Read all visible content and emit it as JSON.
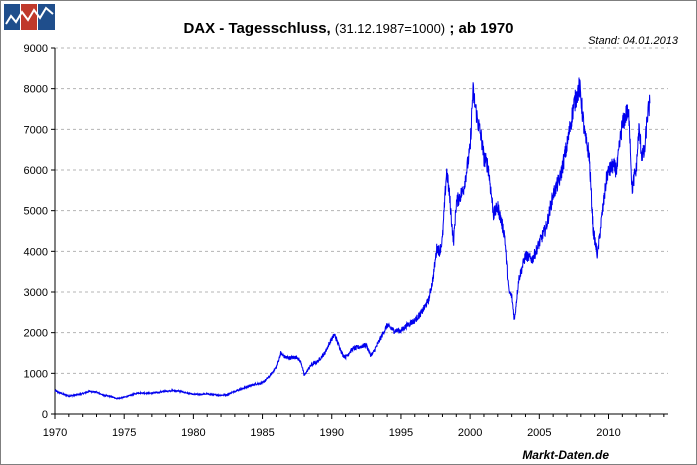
{
  "title": {
    "main": "DAX - Tagesschluss,",
    "base": "(31.12.1987=1000)",
    "suffix": "; ab 1970"
  },
  "stand": "Stand: 04.01.2013",
  "source": "Markt-Daten.de",
  "logo_colors": [
    "#1f4e8c",
    "#c0392b",
    "#1f4e8c"
  ],
  "chart_data": {
    "type": "line",
    "title": "DAX - Tagesschluss, (31.12.1987=1000) ; ab 1970",
    "xlabel": "",
    "ylabel": "",
    "xlim": [
      1970,
      2014.3
    ],
    "ylim": [
      0,
      9000
    ],
    "grid": true,
    "x_ticks": [
      1970,
      1975,
      1980,
      1985,
      1990,
      1995,
      2000,
      2005,
      2010
    ],
    "y_ticks": [
      0,
      1000,
      2000,
      3000,
      4000,
      5000,
      6000,
      7000,
      8000,
      9000
    ],
    "line_color": "#0000ee",
    "series": [
      {
        "x": [
          1970.0,
          1970.5,
          1971.0,
          1971.5,
          1972.0,
          1972.5,
          1973.0,
          1973.5,
          1974.0,
          1974.5,
          1975.0,
          1975.5,
          1976.0,
          1977.0,
          1978.0,
          1978.5,
          1979.0,
          1980.0,
          1981.0,
          1982.0,
          1982.5,
          1983.0,
          1983.5,
          1984.0,
          1984.5,
          1985.0,
          1985.5,
          1986.0,
          1986.3,
          1986.6,
          1987.0,
          1987.5,
          1987.8,
          1988.0,
          1988.5,
          1989.0,
          1989.5,
          1989.9,
          1990.2,
          1990.5,
          1990.8,
          1991.0,
          1991.5,
          1992.0,
          1992.5,
          1992.8,
          1993.0,
          1993.5,
          1994.0,
          1994.5,
          1995.0,
          1995.5,
          1996.0,
          1996.5,
          1997.0,
          1997.3,
          1997.6,
          1997.8,
          1998.0,
          1998.3,
          1998.5,
          1998.8,
          1999.0,
          1999.5,
          2000.0,
          2000.2,
          2000.5,
          2000.8,
          2001.0,
          2001.3,
          2001.7,
          2002.0,
          2002.5,
          2002.8,
          2003.0,
          2003.2,
          2003.5,
          2004.0,
          2004.5,
          2005.0,
          2005.5,
          2006.0,
          2006.5,
          2007.0,
          2007.5,
          2007.9,
          2008.0,
          2008.3,
          2008.6,
          2008.9,
          2009.2,
          2009.5,
          2009.9,
          2010.0,
          2010.3,
          2010.6,
          2010.9,
          2011.0,
          2011.3,
          2011.5,
          2011.7,
          2011.9,
          2012.0,
          2012.2,
          2012.4,
          2012.6,
          2012.8,
          2012.99
        ],
        "y": [
          570,
          500,
          440,
          470,
          500,
          560,
          540,
          460,
          430,
          380,
          410,
          460,
          520,
          510,
          560,
          580,
          560,
          480,
          490,
          460,
          480,
          560,
          620,
          680,
          740,
          760,
          920,
          1150,
          1500,
          1400,
          1380,
          1400,
          1250,
          950,
          1200,
          1300,
          1500,
          1790,
          1950,
          1700,
          1450,
          1400,
          1600,
          1650,
          1700,
          1450,
          1500,
          1850,
          2180,
          2050,
          2050,
          2200,
          2300,
          2500,
          2800,
          3300,
          4100,
          4000,
          4300,
          6000,
          5400,
          4200,
          5200,
          5500,
          6500,
          7950,
          7300,
          6800,
          6300,
          6100,
          4900,
          5100,
          4400,
          3000,
          2900,
          2300,
          3300,
          3900,
          3800,
          4200,
          4600,
          5400,
          5800,
          6600,
          7600,
          8050,
          7800,
          6800,
          6400,
          4500,
          3900,
          4800,
          5900,
          5950,
          6100,
          6000,
          6900,
          7100,
          7400,
          7300,
          5500,
          5900,
          6000,
          7000,
          6400,
          6400,
          7300,
          7640
        ]
      }
    ]
  }
}
